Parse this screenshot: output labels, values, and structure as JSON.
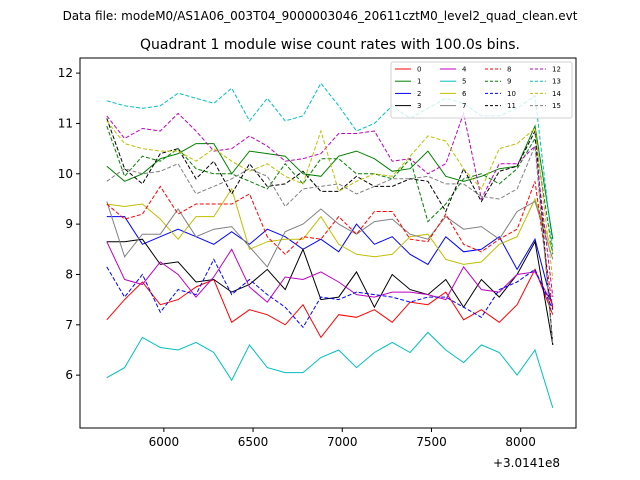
{
  "chart_data": {
    "type": "line",
    "suptitle": "Data file: modeM0/AS1A06_003T04_9000003046_20611cztM0_level2_quad_clean.evt",
    "title": "Quadrant 1 module wise count rates with 100.0s bins.",
    "xlabel": "",
    "ylabel": "",
    "x_offset_label": "+3.0141e8",
    "xlim": [
      5530,
      8310
    ],
    "ylim": [
      4.95,
      12.3
    ],
    "xticks": [
      6000,
      6500,
      7000,
      7500,
      8000
    ],
    "yticks": [
      6,
      7,
      8,
      9,
      10,
      11,
      12
    ],
    "legend_position": "top-right",
    "legend_columns": 4,
    "x": [
      5680,
      5780,
      5880,
      5980,
      6080,
      6180,
      6280,
      6380,
      6480,
      6580,
      6680,
      6780,
      6880,
      6980,
      7080,
      7180,
      7280,
      7380,
      7480,
      7580,
      7680,
      7780,
      7880,
      7980,
      8080,
      8180
    ],
    "series": [
      {
        "name": "0",
        "color": "#ff0000",
        "dash": "solid",
        "values": [
          7.1,
          7.5,
          7.85,
          7.4,
          7.5,
          7.75,
          7.9,
          7.05,
          7.3,
          7.2,
          7.0,
          7.4,
          6.75,
          7.2,
          7.15,
          7.3,
          7.05,
          7.45,
          7.4,
          7.65,
          7.1,
          7.3,
          7.05,
          7.4,
          8.1,
          7.2
        ]
      },
      {
        "name": "1",
        "color": "#008000",
        "dash": "solid",
        "values": [
          10.15,
          9.85,
          10.0,
          10.3,
          10.4,
          10.6,
          10.6,
          10.0,
          10.45,
          10.4,
          10.35,
          10.0,
          9.95,
          10.35,
          10.45,
          10.3,
          10.05,
          10.1,
          10.45,
          9.95,
          9.85,
          9.95,
          10.1,
          10.15,
          10.95,
          8.7
        ]
      },
      {
        "name": "2",
        "color": "#0000ff",
        "dash": "solid",
        "values": [
          9.15,
          9.15,
          8.6,
          8.75,
          8.9,
          8.75,
          8.6,
          8.85,
          8.6,
          8.9,
          8.75,
          8.5,
          8.7,
          8.45,
          9.0,
          8.6,
          8.75,
          8.4,
          8.2,
          8.75,
          8.45,
          8.5,
          8.75,
          8.1,
          8.7,
          7.35
        ]
      },
      {
        "name": "3",
        "color": "#000000",
        "dash": "solid",
        "values": [
          8.65,
          8.65,
          8.7,
          8.2,
          8.25,
          7.85,
          7.9,
          7.65,
          7.8,
          8.1,
          7.7,
          8.5,
          7.5,
          7.55,
          8.05,
          7.35,
          8.0,
          7.7,
          7.6,
          7.9,
          7.35,
          7.9,
          7.55,
          8.0,
          8.65,
          6.6
        ]
      },
      {
        "name": "4",
        "color": "#c000c0",
        "dash": "solid",
        "values": [
          8.65,
          7.9,
          7.8,
          8.25,
          8.0,
          7.55,
          7.95,
          8.5,
          7.75,
          7.45,
          7.95,
          7.9,
          8.05,
          7.85,
          7.6,
          7.55,
          7.65,
          7.65,
          7.6,
          7.5,
          8.15,
          7.7,
          7.65,
          8.0,
          8.05,
          7.4
        ]
      },
      {
        "name": "5",
        "color": "#00bfbf",
        "dash": "solid",
        "values": [
          5.95,
          6.15,
          6.75,
          6.55,
          6.5,
          6.65,
          6.45,
          5.9,
          6.6,
          6.15,
          6.05,
          6.05,
          6.35,
          6.5,
          6.15,
          6.45,
          6.65,
          6.45,
          6.85,
          6.5,
          6.25,
          6.6,
          6.45,
          6.0,
          6.5,
          5.35
        ]
      },
      {
        "name": "6",
        "color": "#bfbf00",
        "dash": "solid",
        "values": [
          9.4,
          9.35,
          9.4,
          9.1,
          8.7,
          9.15,
          9.15,
          9.7,
          8.5,
          8.65,
          8.7,
          8.7,
          9.15,
          8.6,
          8.4,
          8.35,
          8.4,
          8.75,
          8.8,
          8.3,
          8.2,
          8.25,
          8.6,
          8.75,
          9.5,
          8.45
        ]
      },
      {
        "name": "7",
        "color": "#808080",
        "dash": "solid",
        "values": [
          9.45,
          8.35,
          8.8,
          8.8,
          9.3,
          8.75,
          8.9,
          8.95,
          8.55,
          8.15,
          8.85,
          9.0,
          9.3,
          9.0,
          8.8,
          9.05,
          9.1,
          8.8,
          8.7,
          9.15,
          8.9,
          8.95,
          8.7,
          9.25,
          9.45,
          8.3
        ]
      },
      {
        "name": "8",
        "color": "#ff0000",
        "dash": "dashed",
        "values": [
          9.4,
          9.1,
          9.2,
          9.75,
          9.2,
          9.4,
          9.4,
          9.4,
          9.6,
          8.75,
          8.4,
          8.75,
          8.7,
          9.15,
          8.8,
          9.25,
          9.25,
          8.7,
          8.65,
          9.2,
          8.6,
          8.45,
          8.7,
          8.9,
          9.85,
          7.3
        ]
      },
      {
        "name": "9",
        "color": "#008000",
        "dash": "dashed",
        "values": [
          10.95,
          9.95,
          10.35,
          10.25,
          10.5,
          10.1,
          10.0,
          10.0,
          9.85,
          9.7,
          10.2,
          9.8,
          10.3,
          10.3,
          10.0,
          10.0,
          9.9,
          10.3,
          9.05,
          9.4,
          9.9,
          10.0,
          9.8,
          10.1,
          10.7,
          8.4
        ]
      },
      {
        "name": "10",
        "color": "#0000ff",
        "dash": "dashed",
        "values": [
          8.15,
          7.55,
          8.0,
          7.25,
          7.7,
          7.6,
          8.3,
          7.6,
          7.9,
          7.6,
          7.35,
          6.95,
          7.55,
          7.5,
          7.65,
          7.6,
          7.55,
          7.45,
          7.55,
          7.55,
          7.35,
          7.15,
          7.7,
          7.85,
          8.1,
          7.3
        ]
      },
      {
        "name": "11",
        "color": "#000000",
        "dash": "dashed",
        "values": [
          11.1,
          10.1,
          9.8,
          10.4,
          10.5,
          9.9,
          10.25,
          9.6,
          10.2,
          9.75,
          9.8,
          10.05,
          9.65,
          9.65,
          9.95,
          9.75,
          9.75,
          9.9,
          9.85,
          9.25,
          10.1,
          9.45,
          10.05,
          10.15,
          10.85,
          6.6
        ]
      },
      {
        "name": "12",
        "color": "#c000c0",
        "dash": "dashed",
        "values": [
          11.15,
          10.7,
          10.9,
          10.85,
          11.2,
          10.85,
          10.45,
          10.5,
          10.75,
          10.55,
          10.25,
          10.3,
          10.4,
          10.8,
          10.8,
          10.85,
          10.25,
          10.3,
          10.0,
          10.2,
          11.2,
          9.5,
          10.2,
          10.2,
          10.55,
          7.55
        ]
      },
      {
        "name": "13",
        "color": "#00bfbf",
        "dash": "dashed",
        "values": [
          11.45,
          11.35,
          11.3,
          11.35,
          11.6,
          11.5,
          11.4,
          11.7,
          11.05,
          11.5,
          11.05,
          11.15,
          11.8,
          11.35,
          10.85,
          11.0,
          11.35,
          11.1,
          11.3,
          11.5,
          11.4,
          11.15,
          11.15,
          11.3,
          11.55,
          8.5
        ]
      },
      {
        "name": "14",
        "color": "#bfbf00",
        "dash": "dashed",
        "values": [
          11.05,
          10.6,
          10.5,
          10.45,
          10.45,
          10.25,
          10.5,
          10.25,
          10.05,
          10.2,
          9.95,
          9.8,
          10.85,
          9.65,
          9.85,
          10.0,
          9.95,
          10.35,
          10.75,
          10.65,
          10.1,
          9.7,
          10.5,
          10.6,
          10.9,
          7.9
        ]
      },
      {
        "name": "15",
        "color": "#808080",
        "dash": "dashed",
        "values": [
          9.85,
          10.1,
          10.0,
          10.05,
          10.2,
          9.6,
          9.75,
          9.9,
          10.1,
          9.95,
          9.35,
          9.7,
          9.75,
          9.8,
          9.6,
          9.75,
          9.9,
          9.9,
          9.95,
          9.8,
          9.8,
          9.55,
          9.5,
          9.7,
          10.55,
          6.6
        ]
      }
    ]
  }
}
